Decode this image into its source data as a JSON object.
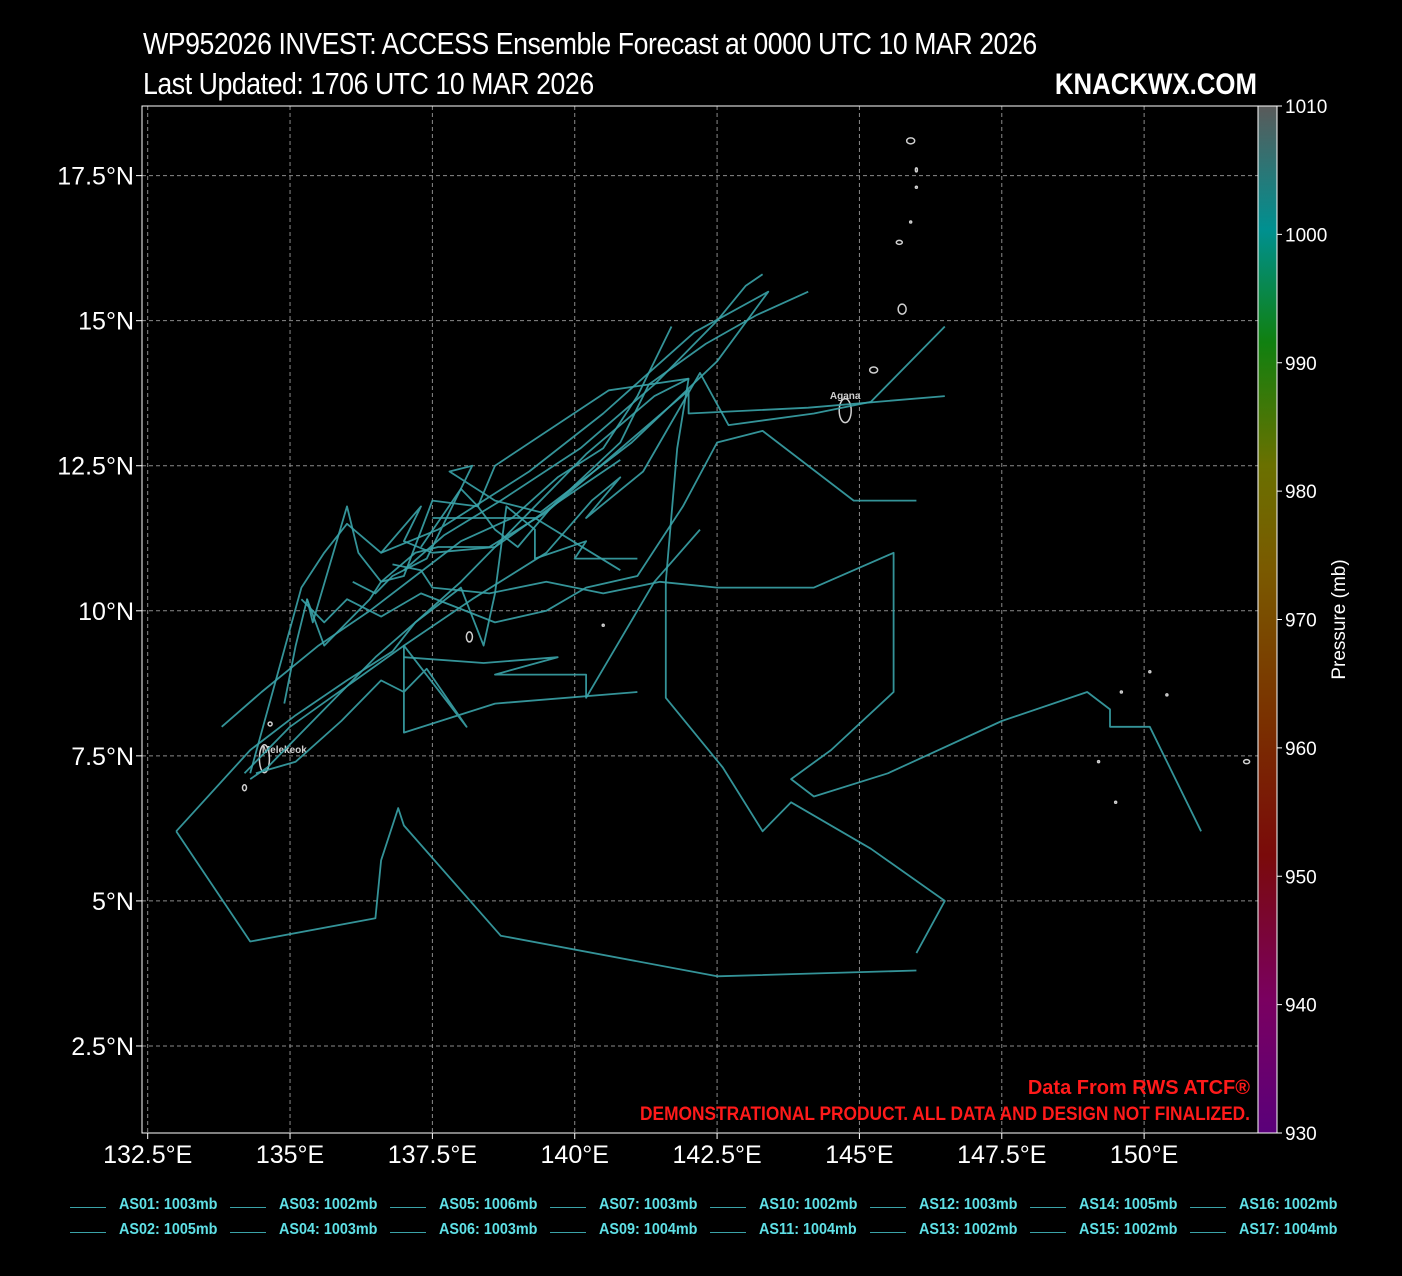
{
  "header": {
    "title": "WP952026 INVEST: ACCESS Ensemble Forecast at 0000 UTC 10 MAR 2026",
    "subtitle": "Last Updated: 1706 UTC 10 MAR 2026",
    "brand": "KNACKWX.COM"
  },
  "colors": {
    "background": "#000000",
    "track": "#3aa3a8",
    "legend_text": "#5fe0e6",
    "disclaimer": "#ff1a1a",
    "grid": "#8a8a8a"
  },
  "disclaimer": {
    "line1": "Data From RWS ATCF®",
    "line2": "DEMONSTRATIONAL PRODUCT. ALL DATA AND DESIGN NOT FINALIZED."
  },
  "place_labels": [
    "Melekeok",
    "Agana"
  ],
  "chart_data": {
    "type": "line",
    "map": "West Pacific",
    "xlim": [
      132.4,
      152.0
    ],
    "ylim": [
      1.0,
      18.7
    ],
    "x_ticks": [
      132.5,
      135,
      137.5,
      140,
      142.5,
      145,
      147.5,
      150
    ],
    "x_tick_labels": [
      "132.5°E",
      "135°E",
      "137.5°E",
      "140°E",
      "142.5°E",
      "145°E",
      "147.5°E",
      "150°E"
    ],
    "y_ticks": [
      2.5,
      5,
      7.5,
      10,
      12.5,
      15,
      17.5
    ],
    "y_tick_labels": [
      "2.5°N",
      "5°N",
      "7.5°N",
      "10°N",
      "12.5°N",
      "15°N",
      "17.5°N"
    ],
    "grid": true,
    "colorbar": {
      "label": "Pressure (mb)",
      "ticks": [
        930,
        940,
        950,
        960,
        970,
        980,
        990,
        1000,
        1010
      ],
      "range": [
        930,
        1010
      ]
    },
    "series": [
      {
        "name": "AS01: 1003mb",
        "points": [
          [
            134.3,
            7.1
          ],
          [
            134.6,
            7.3
          ],
          [
            135.8,
            8.5
          ],
          [
            136.5,
            9.2
          ],
          [
            137.2,
            9.8
          ],
          [
            138.0,
            10.5
          ],
          [
            139.0,
            11.5
          ],
          [
            140.2,
            12.7
          ],
          [
            141.4,
            13.7
          ],
          [
            142.0,
            14.0
          ]
        ]
      },
      {
        "name": "AS02: 1005mb",
        "points": [
          [
            134.3,
            7.2
          ],
          [
            135.2,
            10.4
          ],
          [
            135.6,
            11.0
          ],
          [
            136.0,
            11.5
          ],
          [
            136.6,
            11.0
          ],
          [
            137.3,
            11.8
          ],
          [
            137.0,
            11.2
          ],
          [
            137.5,
            11.0
          ],
          [
            138.6,
            11.1
          ],
          [
            139.6,
            11.8
          ],
          [
            140.8,
            12.6
          ]
        ]
      },
      {
        "name": "AS03: 1002mb",
        "points": [
          [
            134.9,
            8.4
          ],
          [
            135.1,
            9.4
          ],
          [
            135.3,
            10.2
          ],
          [
            135.6,
            9.4
          ],
          [
            136.4,
            10.2
          ],
          [
            136.6,
            10.5
          ],
          [
            137.2,
            11.0
          ],
          [
            137.6,
            11.1
          ],
          [
            138.5,
            11.1
          ],
          [
            139.5,
            11.7
          ],
          [
            142.0,
            13.8
          ],
          [
            142.0,
            13.4
          ],
          [
            144.1,
            13.5
          ],
          [
            146.5,
            13.7
          ]
        ]
      },
      {
        "name": "AS04: 1003mb",
        "points": [
          [
            135.3,
            10.2
          ],
          [
            135.4,
            9.8
          ],
          [
            136.0,
            11.8
          ],
          [
            136.2,
            11.0
          ],
          [
            136.6,
            10.5
          ],
          [
            137.0,
            10.6
          ],
          [
            137.5,
            11.9
          ],
          [
            138.3,
            11.8
          ],
          [
            138.6,
            12.5
          ],
          [
            140.6,
            13.8
          ],
          [
            142.0,
            14.0
          ],
          [
            141.8,
            12.8
          ],
          [
            141.6,
            10.5
          ],
          [
            141.6,
            8.5
          ],
          [
            142.6,
            7.3
          ],
          [
            143.3,
            6.2
          ],
          [
            143.8,
            6.7
          ],
          [
            145.2,
            5.9
          ],
          [
            146.5,
            5.0
          ],
          [
            146.0,
            4.1
          ]
        ]
      },
      {
        "name": "AS05: 1006mb",
        "points": [
          [
            133.0,
            6.2
          ],
          [
            134.3,
            4.3
          ],
          [
            136.5,
            4.7
          ],
          [
            136.6,
            5.7
          ],
          [
            136.9,
            6.6
          ],
          [
            137.0,
            6.3
          ],
          [
            138.7,
            4.4
          ],
          [
            142.5,
            3.7
          ],
          [
            146.0,
            3.8
          ]
        ]
      },
      {
        "name": "AS06: 1003mb",
        "points": [
          [
            136.1,
            10.5
          ],
          [
            136.5,
            10.3
          ],
          [
            136.8,
            10.6
          ],
          [
            137.4,
            10.9
          ],
          [
            138.2,
            12.5
          ],
          [
            137.8,
            12.4
          ],
          [
            138.6,
            11.9
          ],
          [
            139.4,
            11.7
          ],
          [
            141.0,
            12.9
          ],
          [
            142.5,
            14.3
          ],
          [
            143.4,
            15.5
          ],
          [
            142.1,
            14.8
          ],
          [
            140.5,
            13.4
          ],
          [
            139.2,
            12.4
          ],
          [
            137.6,
            11.4
          ],
          [
            136.6,
            11.0
          ]
        ]
      },
      {
        "name": "AS07: 1003mb",
        "points": [
          [
            137.0,
            10.7
          ],
          [
            137.7,
            11.3
          ],
          [
            138.7,
            11.9
          ],
          [
            140.1,
            12.8
          ],
          [
            141.4,
            13.9
          ],
          [
            142.5,
            15.0
          ],
          [
            143.0,
            15.6
          ],
          [
            143.3,
            15.8
          ]
        ]
      },
      {
        "name": "AS09: 1004mb",
        "points": [
          [
            133.8,
            8.0
          ],
          [
            134.5,
            8.6
          ],
          [
            135.5,
            9.4
          ],
          [
            136.4,
            10.0
          ],
          [
            137.2,
            10.6
          ],
          [
            138.0,
            11.2
          ],
          [
            138.9,
            11.6
          ],
          [
            139.7,
            12.3
          ],
          [
            140.5,
            12.8
          ],
          [
            141.1,
            13.7
          ],
          [
            141.7,
            14.9
          ]
        ]
      },
      {
        "name": "AS10: 1002mb",
        "points": [
          [
            134.2,
            7.2
          ],
          [
            135.0,
            8.0
          ],
          [
            136.0,
            8.7
          ],
          [
            137.0,
            9.4
          ],
          [
            138.2,
            10.2
          ],
          [
            139.5,
            11.0
          ],
          [
            140.3,
            11.9
          ],
          [
            140.8,
            12.3
          ],
          [
            140.2,
            11.6
          ],
          [
            141.2,
            12.4
          ],
          [
            142.2,
            14.1
          ],
          [
            142.7,
            13.2
          ],
          [
            144.2,
            13.4
          ],
          [
            145.2,
            13.6
          ],
          [
            146.5,
            14.9
          ]
        ]
      },
      {
        "name": "AS11: 1004mb",
        "points": [
          [
            137.0,
            9.2
          ],
          [
            138.4,
            9.1
          ],
          [
            139.7,
            9.2
          ],
          [
            138.6,
            8.9
          ],
          [
            140.2,
            8.9
          ],
          [
            140.2,
            8.5
          ],
          [
            141.4,
            10.5
          ],
          [
            142.2,
            11.4
          ]
        ]
      },
      {
        "name": "AS12: 1003mb",
        "points": [
          [
            134.4,
            7.2
          ],
          [
            135.1,
            7.4
          ],
          [
            135.9,
            8.1
          ],
          [
            136.6,
            8.8
          ],
          [
            137.0,
            8.6
          ],
          [
            137.0,
            9.4
          ],
          [
            138.1,
            8.0
          ],
          [
            137.4,
            9.0
          ],
          [
            137.0,
            8.6
          ],
          [
            137.0,
            7.9
          ],
          [
            138.6,
            8.4
          ],
          [
            141.1,
            8.6
          ]
        ]
      },
      {
        "name": "AS13: 1002mb",
        "points": [
          [
            135.2,
            10.2
          ],
          [
            135.6,
            9.8
          ],
          [
            136.0,
            10.2
          ],
          [
            136.6,
            9.9
          ],
          [
            137.3,
            10.3
          ],
          [
            138.6,
            9.8
          ],
          [
            139.5,
            10.0
          ],
          [
            140.2,
            10.4
          ],
          [
            141.1,
            10.6
          ],
          [
            141.9,
            11.8
          ],
          [
            142.5,
            12.9
          ],
          [
            143.3,
            13.1
          ],
          [
            144.9,
            11.9
          ],
          [
            146.0,
            11.9
          ]
        ]
      },
      {
        "name": "AS14: 1005mb",
        "points": [
          [
            133.0,
            6.2
          ],
          [
            134.3,
            7.6
          ],
          [
            135.1,
            8.2
          ],
          [
            136.0,
            8.8
          ],
          [
            136.8,
            9.3
          ],
          [
            137.2,
            9.8
          ],
          [
            138.0,
            10.4
          ],
          [
            138.4,
            9.4
          ],
          [
            138.6,
            10.3
          ],
          [
            138.8,
            11.8
          ],
          [
            139.3,
            11.4
          ],
          [
            139.3,
            10.9
          ],
          [
            140.2,
            11.2
          ],
          [
            140.0,
            10.9
          ],
          [
            141.1,
            10.9
          ]
        ]
      },
      {
        "name": "AS15: 1002mb",
        "points": [
          [
            137.5,
            11.6
          ],
          [
            139.3,
            11.6
          ],
          [
            140.3,
            11.0
          ],
          [
            140.8,
            10.7
          ]
        ]
      },
      {
        "name": "AS16: 1002mb",
        "points": [
          [
            137.3,
            11.1
          ],
          [
            138.0,
            12.1
          ],
          [
            138.3,
            11.8
          ],
          [
            138.6,
            11.4
          ],
          [
            139.0,
            11.1
          ],
          [
            139.6,
            11.8
          ],
          [
            140.8,
            12.9
          ],
          [
            141.3,
            13.9
          ],
          [
            142.3,
            14.6
          ],
          [
            143.2,
            15.1
          ],
          [
            144.1,
            15.5
          ]
        ]
      },
      {
        "name": "AS17: 1004mb",
        "points": [
          [
            136.8,
            10.8
          ],
          [
            137.3,
            10.7
          ],
          [
            137.5,
            10.4
          ],
          [
            138.5,
            10.3
          ],
          [
            139.5,
            10.5
          ],
          [
            140.5,
            10.3
          ],
          [
            141.5,
            10.5
          ],
          [
            142.5,
            10.4
          ],
          [
            143.5,
            10.4
          ],
          [
            144.2,
            10.4
          ],
          [
            145.6,
            11.0
          ],
          [
            145.6,
            8.6
          ],
          [
            144.5,
            7.6
          ],
          [
            143.8,
            7.1
          ],
          [
            144.2,
            6.8
          ],
          [
            145.5,
            7.2
          ],
          [
            147.5,
            8.1
          ],
          [
            149.0,
            8.6
          ],
          [
            149.4,
            8.3
          ],
          [
            149.4,
            8.0
          ],
          [
            150.1,
            8.0
          ],
          [
            151.0,
            6.2
          ]
        ]
      }
    ]
  }
}
